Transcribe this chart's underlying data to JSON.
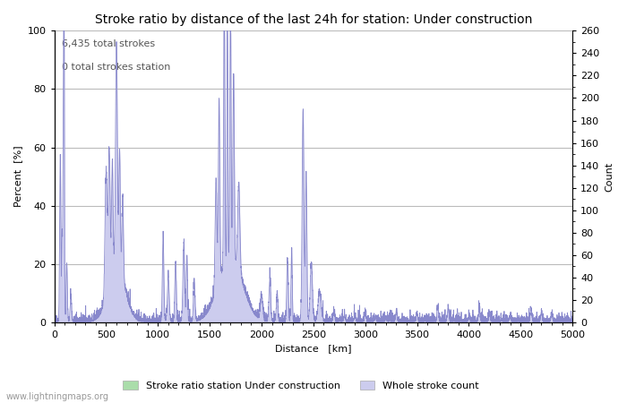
{
  "title": "Stroke ratio by distance of the last 24h for station: Under construction",
  "xlabel": "Distance   [km]",
  "ylabel_left": "Percent  [%]",
  "ylabel_right": "Count",
  "annotation_line1": "6,435 total strokes",
  "annotation_line2": "0 total strokes station",
  "xlim": [
    0,
    5000
  ],
  "ylim_left": [
    0,
    100
  ],
  "ylim_right": [
    0,
    260
  ],
  "xticks": [
    0,
    500,
    1000,
    1500,
    2000,
    2500,
    3000,
    3500,
    4000,
    4500,
    5000
  ],
  "yticks_left": [
    0,
    20,
    40,
    60,
    80,
    100
  ],
  "yticks_right": [
    0,
    20,
    40,
    60,
    80,
    100,
    120,
    140,
    160,
    180,
    200,
    220,
    240,
    260
  ],
  "watermark": "www.lightningmaps.org",
  "legend_green_label": "Stroke ratio station Under construction",
  "legend_blue_label": "Whole stroke count",
  "line_color": "#8888cc",
  "fill_blue_color": "#ccccee",
  "fill_green_color": "#aaddaa",
  "background_color": "#ffffff",
  "grid_color": "#bbbbbb",
  "title_fontsize": 10,
  "label_fontsize": 8,
  "tick_fontsize": 8,
  "annotation_fontsize": 8
}
